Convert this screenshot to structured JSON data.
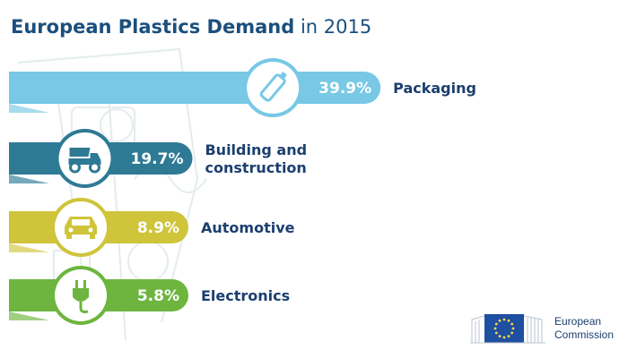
{
  "title": {
    "bold": "European Plastics Demand",
    "rest": " in 2015"
  },
  "chart_data": {
    "type": "bar",
    "title": "European Plastics Demand in 2015",
    "orientation": "horizontal",
    "categories": [
      "Packaging",
      "Building and construction",
      "Automotive",
      "Electronics"
    ],
    "category_lines": [
      [
        "Packaging"
      ],
      [
        "Building and",
        "construction"
      ],
      [
        "Automotive"
      ],
      [
        "Electronics"
      ]
    ],
    "values": [
      39.9,
      19.7,
      8.9,
      5.8
    ],
    "value_labels": [
      "39.9%",
      "19.7%",
      "8.9%",
      "5.8%"
    ],
    "icons": [
      "bottle-icon",
      "dump-truck-icon",
      "car-icon",
      "plug-icon"
    ],
    "colors": [
      "#78c8e6",
      "#2e7a95",
      "#cfc43a",
      "#6db53e"
    ],
    "unit": "%",
    "xlabel": "",
    "ylabel": "",
    "grid": false,
    "legend": "none"
  },
  "logo": {
    "line1": "European",
    "line2": "Commission"
  }
}
